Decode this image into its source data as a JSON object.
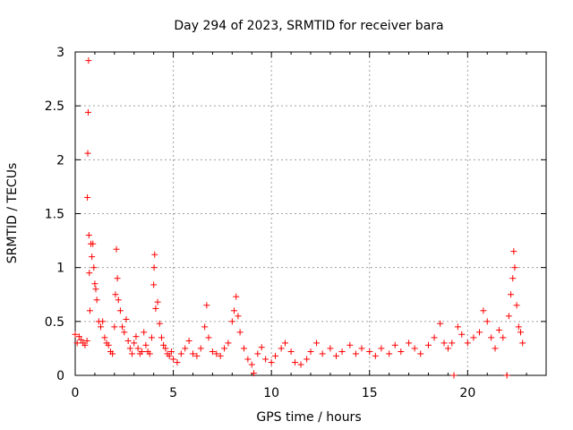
{
  "chart_data": {
    "type": "scatter",
    "title": "Day 294 of 2023, SRMTID for receiver bara",
    "xlabel": "GPS time / hours",
    "ylabel": "SRMTID / TECUs",
    "xlim": [
      0,
      24
    ],
    "ylim": [
      0,
      3
    ],
    "xticks": [
      0,
      5,
      10,
      15,
      20
    ],
    "yticks": [
      0,
      0.5,
      1,
      1.5,
      2,
      2.5,
      3
    ],
    "ytick_labels": [
      "0",
      "0.5",
      "1",
      "1.5",
      "2",
      "2.5",
      "3"
    ],
    "grid": true,
    "marker": "plus",
    "series_color": "#ff0000",
    "series": [
      {
        "name": "SRMTID",
        "points": [
          [
            0.0,
            0.38
          ],
          [
            0.1,
            0.3
          ],
          [
            0.2,
            0.36
          ],
          [
            0.3,
            0.33
          ],
          [
            0.4,
            0.3
          ],
          [
            0.5,
            0.28
          ],
          [
            0.6,
            0.32
          ],
          [
            0.62,
            1.65
          ],
          [
            0.64,
            2.06
          ],
          [
            0.66,
            2.44
          ],
          [
            0.68,
            2.92
          ],
          [
            0.7,
            1.3
          ],
          [
            0.72,
            0.95
          ],
          [
            0.75,
            0.6
          ],
          [
            0.8,
            1.22
          ],
          [
            0.85,
            1.1
          ],
          [
            0.9,
            1.22
          ],
          [
            0.95,
            1.0
          ],
          [
            1.0,
            0.85
          ],
          [
            1.05,
            0.8
          ],
          [
            1.1,
            0.7
          ],
          [
            1.2,
            0.5
          ],
          [
            1.3,
            0.45
          ],
          [
            1.4,
            0.5
          ],
          [
            1.5,
            0.35
          ],
          [
            1.6,
            0.3
          ],
          [
            1.7,
            0.28
          ],
          [
            1.8,
            0.22
          ],
          [
            1.9,
            0.2
          ],
          [
            2.0,
            0.45
          ],
          [
            2.05,
            0.75
          ],
          [
            2.1,
            1.17
          ],
          [
            2.15,
            0.9
          ],
          [
            2.2,
            0.7
          ],
          [
            2.3,
            0.6
          ],
          [
            2.4,
            0.45
          ],
          [
            2.5,
            0.4
          ],
          [
            2.6,
            0.52
          ],
          [
            2.7,
            0.32
          ],
          [
            2.8,
            0.25
          ],
          [
            2.9,
            0.2
          ],
          [
            3.0,
            0.3
          ],
          [
            3.1,
            0.36
          ],
          [
            3.2,
            0.25
          ],
          [
            3.3,
            0.2
          ],
          [
            3.4,
            0.22
          ],
          [
            3.5,
            0.4
          ],
          [
            3.6,
            0.28
          ],
          [
            3.7,
            0.22
          ],
          [
            3.8,
            0.2
          ],
          [
            3.9,
            0.35
          ],
          [
            4.0,
            0.84
          ],
          [
            4.02,
            1.0
          ],
          [
            4.05,
            1.12
          ],
          [
            4.1,
            0.62
          ],
          [
            4.2,
            0.68
          ],
          [
            4.3,
            0.48
          ],
          [
            4.4,
            0.35
          ],
          [
            4.5,
            0.28
          ],
          [
            4.6,
            0.25
          ],
          [
            4.7,
            0.2
          ],
          [
            4.8,
            0.18
          ],
          [
            4.9,
            0.22
          ],
          [
            5.0,
            0.15
          ],
          [
            5.2,
            0.12
          ],
          [
            5.4,
            0.2
          ],
          [
            5.6,
            0.25
          ],
          [
            5.8,
            0.32
          ],
          [
            6.0,
            0.2
          ],
          [
            6.2,
            0.18
          ],
          [
            6.4,
            0.25
          ],
          [
            6.6,
            0.45
          ],
          [
            6.7,
            0.65
          ],
          [
            6.8,
            0.35
          ],
          [
            7.0,
            0.22
          ],
          [
            7.2,
            0.2
          ],
          [
            7.4,
            0.18
          ],
          [
            7.6,
            0.25
          ],
          [
            7.8,
            0.3
          ],
          [
            8.0,
            0.5
          ],
          [
            8.1,
            0.6
          ],
          [
            8.2,
            0.73
          ],
          [
            8.3,
            0.55
          ],
          [
            8.4,
            0.4
          ],
          [
            8.6,
            0.25
          ],
          [
            8.8,
            0.15
          ],
          [
            9.0,
            0.1
          ],
          [
            9.1,
            0.02
          ],
          [
            9.3,
            0.2
          ],
          [
            9.5,
            0.26
          ],
          [
            9.7,
            0.15
          ],
          [
            10.0,
            0.12
          ],
          [
            10.2,
            0.18
          ],
          [
            10.5,
            0.25
          ],
          [
            10.7,
            0.3
          ],
          [
            11.0,
            0.22
          ],
          [
            11.2,
            0.12
          ],
          [
            11.5,
            0.1
          ],
          [
            11.8,
            0.15
          ],
          [
            12.0,
            0.22
          ],
          [
            12.3,
            0.3
          ],
          [
            12.6,
            0.2
          ],
          [
            13.0,
            0.25
          ],
          [
            13.3,
            0.18
          ],
          [
            13.6,
            0.22
          ],
          [
            14.0,
            0.28
          ],
          [
            14.3,
            0.2
          ],
          [
            14.6,
            0.25
          ],
          [
            15.0,
            0.22
          ],
          [
            15.3,
            0.18
          ],
          [
            15.6,
            0.25
          ],
          [
            16.0,
            0.2
          ],
          [
            16.3,
            0.28
          ],
          [
            16.6,
            0.22
          ],
          [
            17.0,
            0.3
          ],
          [
            17.3,
            0.25
          ],
          [
            17.6,
            0.2
          ],
          [
            18.0,
            0.28
          ],
          [
            18.3,
            0.35
          ],
          [
            18.6,
            0.48
          ],
          [
            18.8,
            0.3
          ],
          [
            19.0,
            0.25
          ],
          [
            19.2,
            0.3
          ],
          [
            19.3,
            0.0
          ],
          [
            19.5,
            0.45
          ],
          [
            19.7,
            0.38
          ],
          [
            20.0,
            0.3
          ],
          [
            20.3,
            0.35
          ],
          [
            20.6,
            0.4
          ],
          [
            20.8,
            0.6
          ],
          [
            21.0,
            0.5
          ],
          [
            21.2,
            0.35
          ],
          [
            21.4,
            0.25
          ],
          [
            21.6,
            0.42
          ],
          [
            21.8,
            0.35
          ],
          [
            22.0,
            0.0
          ],
          [
            22.1,
            0.55
          ],
          [
            22.2,
            0.75
          ],
          [
            22.3,
            0.9
          ],
          [
            22.35,
            1.15
          ],
          [
            22.4,
            1.0
          ],
          [
            22.5,
            0.65
          ],
          [
            22.6,
            0.45
          ],
          [
            22.7,
            0.4
          ],
          [
            22.8,
            0.3
          ]
        ]
      }
    ]
  }
}
